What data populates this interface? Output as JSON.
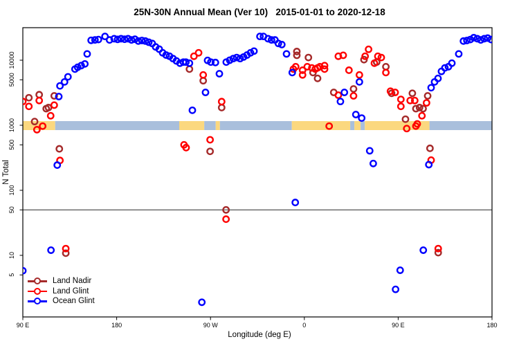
{
  "chart_data": {
    "type": "scatter",
    "title": "25N-30N Annual Mean (Ver 10)   2015-01-01 to 2020-12-18",
    "xlabel": "Longitude (deg E)",
    "ylabel": "N Total",
    "x_axis": {
      "range": [
        0,
        450
      ],
      "note": "axis position in degrees from left edge; longitude wraps 90E->180->90W->0->90E->180",
      "ticks": [
        {
          "pos": 0,
          "label": "90 E"
        },
        {
          "pos": 90,
          "label": "180"
        },
        {
          "pos": 180,
          "label": "90 W"
        },
        {
          "pos": 270,
          "label": "0"
        },
        {
          "pos": 360,
          "label": "90 E"
        },
        {
          "pos": 450,
          "label": "180"
        }
      ]
    },
    "y_axis": {
      "scale": "log",
      "range": [
        1,
        31600
      ],
      "ticks": [
        5,
        10,
        50,
        100,
        500,
        1000,
        5000,
        10000
      ]
    },
    "reference_line_y": 50,
    "map_band": {
      "center_value": 1000,
      "land_color": "#FBD87F",
      "ocean_color": "#A9BFDC",
      "segments": [
        {
          "from": 0,
          "to": 31,
          "type": "land"
        },
        {
          "from": 31,
          "to": 150,
          "type": "ocean"
        },
        {
          "from": 150,
          "to": 174,
          "type": "land"
        },
        {
          "from": 174,
          "to": 185,
          "type": "ocean"
        },
        {
          "from": 185,
          "to": 189,
          "type": "land"
        },
        {
          "from": 189,
          "to": 258,
          "type": "ocean"
        },
        {
          "from": 258,
          "to": 314,
          "type": "land"
        },
        {
          "from": 314,
          "to": 318,
          "type": "ocean"
        },
        {
          "from": 318,
          "to": 324,
          "type": "land"
        },
        {
          "from": 324,
          "to": 328,
          "type": "ocean"
        },
        {
          "from": 328,
          "to": 390,
          "type": "land"
        },
        {
          "from": 390,
          "to": 450,
          "type": "ocean"
        }
      ]
    },
    "series": [
      {
        "name": "Land Nadir",
        "color": "#A52A2A",
        "points": [
          [
            5.8,
            2650
          ],
          [
            11.3,
            1140
          ],
          [
            15.7,
            2950
          ],
          [
            22.4,
            1800
          ],
          [
            24.6,
            1870
          ],
          [
            30.1,
            2830
          ],
          [
            35,
            434
          ],
          [
            41.2,
            10.8
          ],
          [
            159.8,
            7300
          ],
          [
            173,
            4840
          ],
          [
            179.6,
            397
          ],
          [
            190.7,
            1870
          ],
          [
            194.9,
            50
          ],
          [
            262.8,
            13600
          ],
          [
            262.8,
            11900
          ],
          [
            273.9,
            11000
          ],
          [
            278.3,
            6460
          ],
          [
            282.7,
            5250
          ],
          [
            298.2,
            3200
          ],
          [
            317.2,
            3620
          ],
          [
            327.2,
            10200
          ],
          [
            339.4,
            9350
          ],
          [
            348.2,
            7940
          ],
          [
            353.7,
            3100
          ],
          [
            367,
            1240
          ],
          [
            373.6,
            3100
          ],
          [
            377,
            1800
          ],
          [
            380.5,
            1870
          ],
          [
            383.9,
            1800
          ],
          [
            388.3,
            2830
          ],
          [
            390.5,
            442
          ],
          [
            398.4,
            11
          ]
        ]
      },
      {
        "name": "Land Glint",
        "color": "#FF0000",
        "points": [
          [
            0,
            2320
          ],
          [
            5.8,
            1950
          ],
          [
            13.5,
            855
          ],
          [
            15.7,
            2400
          ],
          [
            19,
            970
          ],
          [
            26.7,
            1400
          ],
          [
            30.1,
            2040
          ],
          [
            35.6,
            288
          ],
          [
            41.2,
            12.7
          ],
          [
            154.6,
            500
          ],
          [
            156.6,
            453
          ],
          [
            164.1,
            11500
          ],
          [
            168.6,
            13000
          ],
          [
            173,
            5940
          ],
          [
            179.6,
            598
          ],
          [
            190.7,
            2310
          ],
          [
            194.9,
            36
          ],
          [
            259.5,
            7300
          ],
          [
            261.7,
            7940
          ],
          [
            268.3,
            7020
          ],
          [
            268.3,
            5940
          ],
          [
            272.8,
            7940
          ],
          [
            277.2,
            7620
          ],
          [
            280.5,
            7300
          ],
          [
            282.7,
            7620
          ],
          [
            284.9,
            7940
          ],
          [
            289.4,
            8260
          ],
          [
            289.4,
            7300
          ],
          [
            293.8,
            970
          ],
          [
            302.6,
            11500
          ],
          [
            302.6,
            2900
          ],
          [
            307.3,
            11900
          ],
          [
            312.8,
            7020
          ],
          [
            317.2,
            2830
          ],
          [
            322.8,
            5940
          ],
          [
            328.3,
            11500
          ],
          [
            331.6,
            14700
          ],
          [
            337.2,
            9000
          ],
          [
            340.5,
            11500
          ],
          [
            343.8,
            11000
          ],
          [
            348.2,
            6460
          ],
          [
            352.6,
            3340
          ],
          [
            357.1,
            3200
          ],
          [
            362.6,
            2500
          ],
          [
            362.6,
            1950
          ],
          [
            368.2,
            890
          ],
          [
            371.5,
            2400
          ],
          [
            375.9,
            2400
          ],
          [
            377,
            970
          ],
          [
            378.3,
            1050
          ],
          [
            382.8,
            1400
          ],
          [
            387.2,
            2210
          ],
          [
            391.6,
            291
          ],
          [
            398.4,
            12.7
          ]
        ]
      },
      {
        "name": "Ocean Glint",
        "color": "#0000FF",
        "points": [
          [
            0,
            5.8
          ],
          [
            27,
            12
          ],
          [
            33,
            244
          ],
          [
            34.5,
            2760
          ],
          [
            35.6,
            4030
          ],
          [
            40,
            4640
          ],
          [
            43.3,
            5560
          ],
          [
            50,
            7300
          ],
          [
            52.6,
            7800
          ],
          [
            56,
            8260
          ],
          [
            59.5,
            8770
          ],
          [
            61.7,
            12500
          ],
          [
            65.5,
            20200
          ],
          [
            69.2,
            20500
          ],
          [
            72.5,
            20800
          ],
          [
            78.8,
            23200
          ],
          [
            83.2,
            20500
          ],
          [
            87.6,
            21400
          ],
          [
            90.9,
            20900
          ],
          [
            94.2,
            21400
          ],
          [
            97.6,
            21000
          ],
          [
            100.9,
            21400
          ],
          [
            104.2,
            20500
          ],
          [
            107.5,
            21000
          ],
          [
            110.8,
            19700
          ],
          [
            114.2,
            20100
          ],
          [
            117.5,
            19700
          ],
          [
            120.8,
            18900
          ],
          [
            124.1,
            18100
          ],
          [
            127.4,
            16000
          ],
          [
            130.8,
            14800
          ],
          [
            134.1,
            13000
          ],
          [
            137.4,
            12000
          ],
          [
            140.7,
            11500
          ],
          [
            144,
            10600
          ],
          [
            147.3,
            9750
          ],
          [
            150.7,
            9000
          ],
          [
            154,
            9350
          ],
          [
            156.4,
            9350
          ],
          [
            159.8,
            9000
          ],
          [
            162.6,
            1700
          ],
          [
            171.7,
            1.9
          ],
          [
            175.2,
            3200
          ],
          [
            177.2,
            9930
          ],
          [
            180.3,
            9350
          ],
          [
            184.7,
            9220
          ],
          [
            188.5,
            6200
          ],
          [
            195.1,
            9350
          ],
          [
            198.4,
            10000
          ],
          [
            201.8,
            10600
          ],
          [
            205.1,
            11000
          ],
          [
            208.4,
            10600
          ],
          [
            211.7,
            11200
          ],
          [
            215,
            12000
          ],
          [
            218.4,
            13000
          ],
          [
            221.7,
            13800
          ],
          [
            227.4,
            23200
          ],
          [
            230.8,
            23200
          ],
          [
            235.2,
            21400
          ],
          [
            238.5,
            20500
          ],
          [
            241.8,
            20500
          ],
          [
            245.1,
            18100
          ],
          [
            248.4,
            17400
          ],
          [
            252.9,
            12500
          ],
          [
            258.4,
            6460
          ],
          [
            261.3,
            65
          ],
          [
            304.6,
            2320
          ],
          [
            308.4,
            3200
          ],
          [
            319.4,
            1460
          ],
          [
            322.8,
            4640
          ],
          [
            325,
            1290
          ],
          [
            332.7,
            405
          ],
          [
            336.1,
            258
          ],
          [
            357.5,
            3
          ],
          [
            361.9,
            5.9
          ],
          [
            384.1,
            12
          ],
          [
            389.4,
            248
          ],
          [
            391.6,
            3780
          ],
          [
            394.9,
            4640
          ],
          [
            398.2,
            5250
          ],
          [
            401.5,
            6730
          ],
          [
            404.8,
            7620
          ],
          [
            408.2,
            7940
          ],
          [
            411.5,
            9000
          ],
          [
            418.1,
            12500
          ],
          [
            422.6,
            19700
          ],
          [
            425.9,
            20100
          ],
          [
            429.2,
            20800
          ],
          [
            432.5,
            22200
          ],
          [
            435.9,
            21400
          ],
          [
            439.2,
            20500
          ],
          [
            442.5,
            21400
          ],
          [
            445.8,
            21900
          ],
          [
            449.1,
            20800
          ]
        ]
      }
    ]
  }
}
